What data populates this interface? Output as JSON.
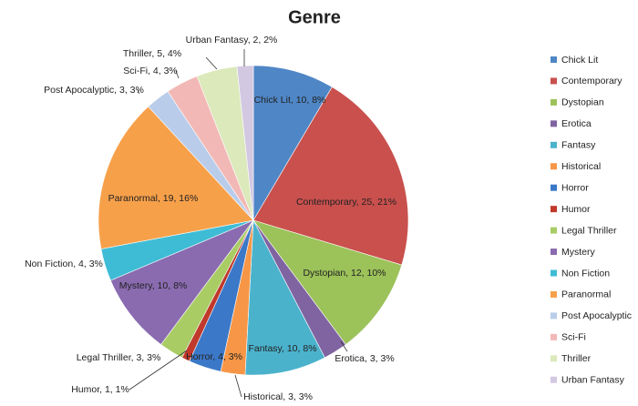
{
  "chart_data": {
    "type": "pie",
    "title": "Genre",
    "categories": [
      "Chick Lit",
      "Contemporary",
      "Dystopian",
      "Erotica",
      "Fantasy",
      "Historical",
      "Horror",
      "Humor",
      "Legal Thriller",
      "Mystery",
      "Non Fiction",
      "Paranormal",
      "Post Apocalyptic",
      "Sci-Fi",
      "Thriller",
      "Urban Fantasy"
    ],
    "values": [
      10,
      25,
      12,
      3,
      10,
      3,
      4,
      1,
      3,
      10,
      4,
      19,
      3,
      4,
      5,
      2
    ],
    "value_labels": [
      "Chick Lit, 10, 8%",
      "Contemporary, 25, 21%",
      "Dystopian, 12, 10%",
      "Erotica, 3, 3%",
      "Fantasy, 10, 8%",
      "Historical, 3, 3%",
      "Horror, 4, 3%",
      "Humor, 1, 1%",
      "Legal Thriller, 3, 3%",
      "Mystery, 10, 8%",
      "Non Fiction, 4, 3%",
      "Paranormal, 19, 16%",
      "Post Apocalyptic, 3, 3%",
      "Sci-Fi, 4, 3%",
      "Thriller, 5, 4%",
      "Urban Fantasy, 2, 2%"
    ],
    "colors": [
      "#4f86c6",
      "#c9504d",
      "#9cc25a",
      "#8064a2",
      "#4bb2cc",
      "#f79646",
      "#3b78c8",
      "#c0392b",
      "#a9cc64",
      "#8a6bb0",
      "#3fbcd5",
      "#f7a04a",
      "#b9cdea",
      "#f2b8b6",
      "#dbe9bb",
      "#d3c8e2"
    ],
    "legend": "right"
  }
}
